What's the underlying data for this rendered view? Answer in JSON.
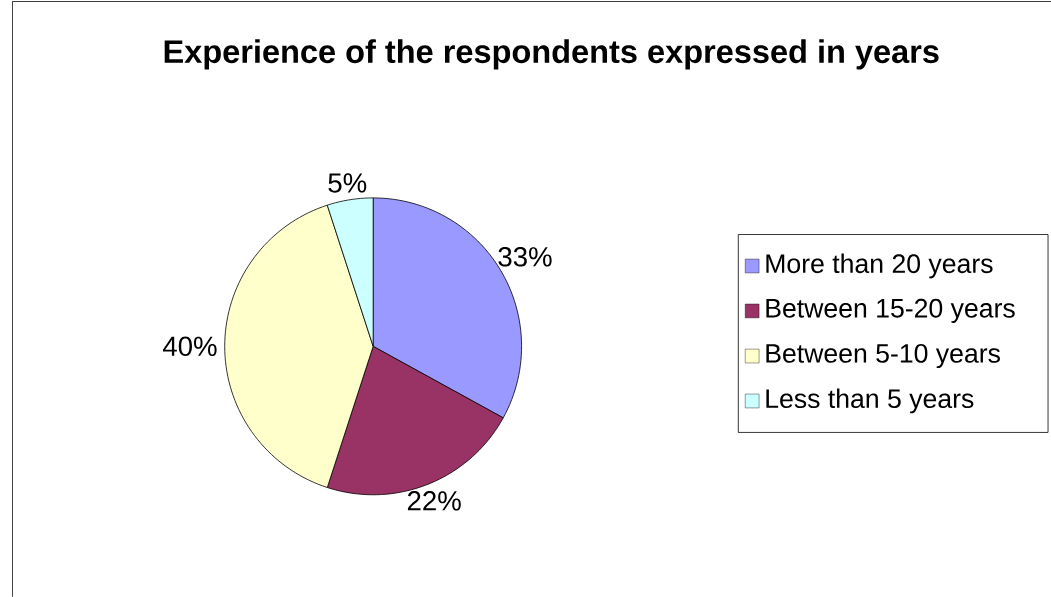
{
  "chart_data": {
    "type": "pie",
    "title": "Experience of the respondents expressed in years",
    "categories": [
      "More than 20 years",
      "Between 15-20 years",
      "Between 5-10 years",
      "Less than 5 years"
    ],
    "values": [
      33,
      22,
      40,
      5
    ],
    "colors": [
      "#9999ff",
      "#993366",
      "#ffffcc",
      "#ccffff"
    ],
    "value_labels": [
      "33%",
      "22%",
      "40%",
      "5%"
    ],
    "legend": "right"
  }
}
